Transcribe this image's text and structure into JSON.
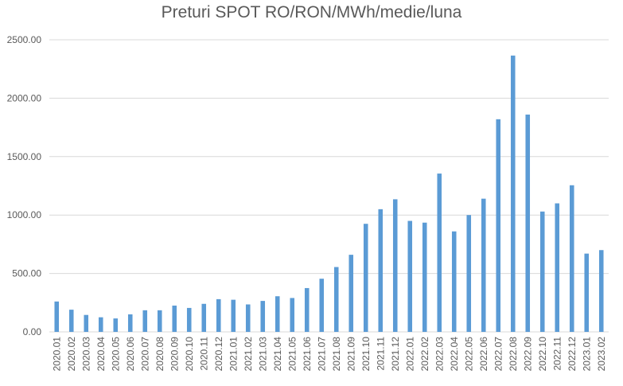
{
  "chart_data": {
    "type": "bar",
    "title": "Preturi SPOT RO/RON/MWh/medie/luna",
    "xlabel": "",
    "ylabel": "",
    "ylim": [
      0,
      2500
    ],
    "yticks": [
      "0.00",
      "500.00",
      "1000.00",
      "1500.00",
      "2000.00",
      "2500.00"
    ],
    "grid": true,
    "legend": "none",
    "bar_color": "#5b9bd5",
    "categories": [
      "2020.01",
      "2020.02",
      "2020.03",
      "2020.04",
      "2020.05",
      "2020.06",
      "2020.07",
      "2020.08",
      "2020.09",
      "2020.10",
      "2020.11",
      "2020.12",
      "2021.01",
      "2021.02",
      "2021.03",
      "2021.04",
      "2021.05",
      "2021.06",
      "2021.07",
      "2021.08",
      "2021.09",
      "2021.10",
      "2021.11",
      "2021.12",
      "2022.01",
      "2022.02",
      "2022.03",
      "2022.04",
      "2022.05",
      "2022.06",
      "2022.07",
      "2022.08",
      "2022.09",
      "2022.10",
      "2022.11",
      "2022.12",
      "2023.01",
      "2023.02"
    ],
    "values": [
      260,
      190,
      145,
      125,
      115,
      150,
      185,
      185,
      225,
      205,
      240,
      280,
      275,
      235,
      265,
      305,
      290,
      375,
      455,
      555,
      660,
      925,
      1050,
      1135,
      950,
      935,
      1355,
      860,
      1000,
      1140,
      1820,
      2365,
      1860,
      1030,
      1100,
      1255,
      670,
      700
    ]
  }
}
